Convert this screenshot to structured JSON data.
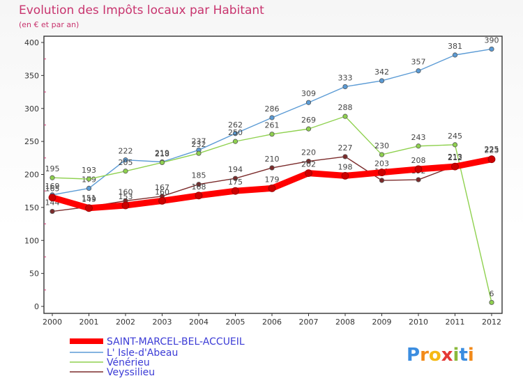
{
  "chart_data": {
    "type": "line",
    "title": "Evolution des Impôts locaux par Habitant",
    "subtitle": "(en € et par an)",
    "x": [
      "2000",
      "2001",
      "2002",
      "2003",
      "2004",
      "2005",
      "2006",
      "2007",
      "2008",
      "2009",
      "2010",
      "2011",
      "2012"
    ],
    "ylim": [
      0,
      400
    ],
    "yticks": [
      "0",
      "50",
      "100",
      "150",
      "200",
      "250",
      "300",
      "350",
      "400"
    ],
    "grid": false,
    "legend_position": "bottom-left",
    "series": [
      {
        "name": "SAINT-MARCEL-BEL-ACCUEIL",
        "color": "#ff0000",
        "values": [
          165,
          149,
          153,
          160,
          168,
          175,
          179,
          202,
          198,
          203,
          208,
          212,
          223
        ]
      },
      {
        "name": "L' Isle-d'Abeau",
        "color": "#5b9bd5",
        "values": [
          169,
          179,
          222,
          219,
          237,
          262,
          286,
          309,
          333,
          342,
          357,
          381,
          390
        ]
      },
      {
        "name": "Vénérieu",
        "color": "#8fd14f",
        "values": [
          195,
          193,
          205,
          218,
          232,
          250,
          261,
          269,
          288,
          230,
          243,
          245,
          6
        ]
      },
      {
        "name": "Veyssilieu",
        "color": "#7b2b2b",
        "values": [
          144,
          151,
          160,
          167,
          185,
          194,
          210,
          220,
          227,
          191,
          192,
          213,
          225
        ]
      }
    ]
  },
  "brand": {
    "text": "Proxiti",
    "letters": [
      "P",
      "r",
      "o",
      "x",
      "i",
      "t",
      "i"
    ]
  }
}
